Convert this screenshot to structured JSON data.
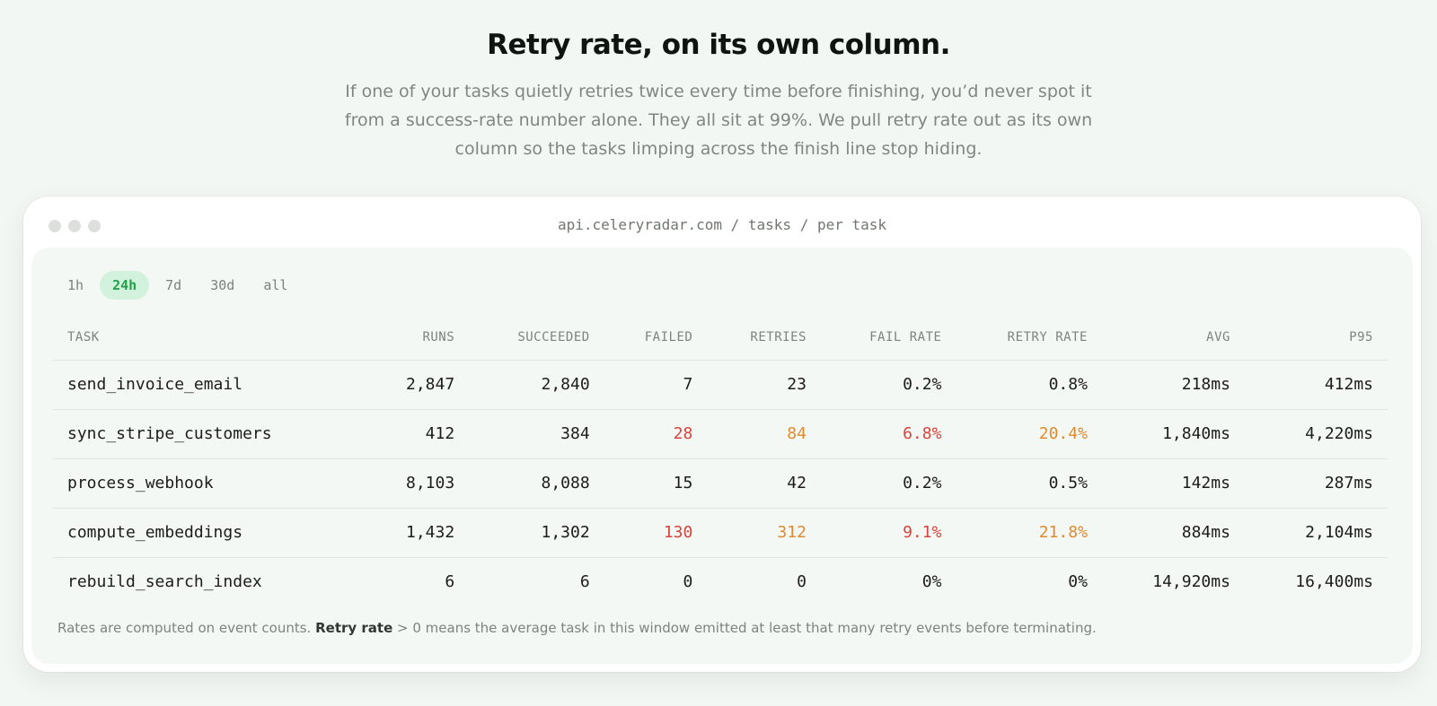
{
  "hero": {
    "title": "Retry rate, on its own column.",
    "subtitle": "If one of your tasks quietly retries twice every time before finishing, you’d never spot it from a success-rate number alone. They all sit at 99%. We pull retry rate out as its own column so the tasks limping across the finish line stop hiding."
  },
  "window": {
    "url": "api.celeryradar.com / tasks / per task"
  },
  "ranges": [
    {
      "label": "1h",
      "active": false
    },
    {
      "label": "24h",
      "active": true
    },
    {
      "label": "7d",
      "active": false
    },
    {
      "label": "30d",
      "active": false
    },
    {
      "label": "all",
      "active": false
    }
  ],
  "table": {
    "columns": [
      "TASK",
      "RUNS",
      "SUCCEEDED",
      "FAILED",
      "RETRIES",
      "FAIL RATE",
      "RETRY RATE",
      "AVG",
      "P95"
    ],
    "rows": [
      {
        "task": "send_invoice_email",
        "runs": "2,847",
        "succeeded": "2,840",
        "failed": "7",
        "retries": "23",
        "fail_rate": "0.2%",
        "retry_rate": "0.8%",
        "avg": "218ms",
        "p95": "412ms",
        "alert": false
      },
      {
        "task": "sync_stripe_customers",
        "runs": "412",
        "succeeded": "384",
        "failed": "28",
        "retries": "84",
        "fail_rate": "6.8%",
        "retry_rate": "20.4%",
        "avg": "1,840ms",
        "p95": "4,220ms",
        "alert": true
      },
      {
        "task": "process_webhook",
        "runs": "8,103",
        "succeeded": "8,088",
        "failed": "15",
        "retries": "42",
        "fail_rate": "0.2%",
        "retry_rate": "0.5%",
        "avg": "142ms",
        "p95": "287ms",
        "alert": false
      },
      {
        "task": "compute_embeddings",
        "runs": "1,432",
        "succeeded": "1,302",
        "failed": "130",
        "retries": "312",
        "fail_rate": "9.1%",
        "retry_rate": "21.8%",
        "avg": "884ms",
        "p95": "2,104ms",
        "alert": true
      },
      {
        "task": "rebuild_search_index",
        "runs": "6",
        "succeeded": "6",
        "failed": "0",
        "retries": "0",
        "fail_rate": "0%",
        "retry_rate": "0%",
        "avg": "14,920ms",
        "p95": "16,400ms",
        "alert": false
      }
    ]
  },
  "footnote": {
    "prefix": "Rates are computed on event counts. ",
    "bold": "Retry rate",
    "suffix": " > 0 means the average task in this window emitted at least that many retry events before terminating."
  },
  "colors": {
    "accent_green": "#22a04a",
    "fail_red": "#d9433b",
    "retry_orange": "#e08a2e"
  }
}
